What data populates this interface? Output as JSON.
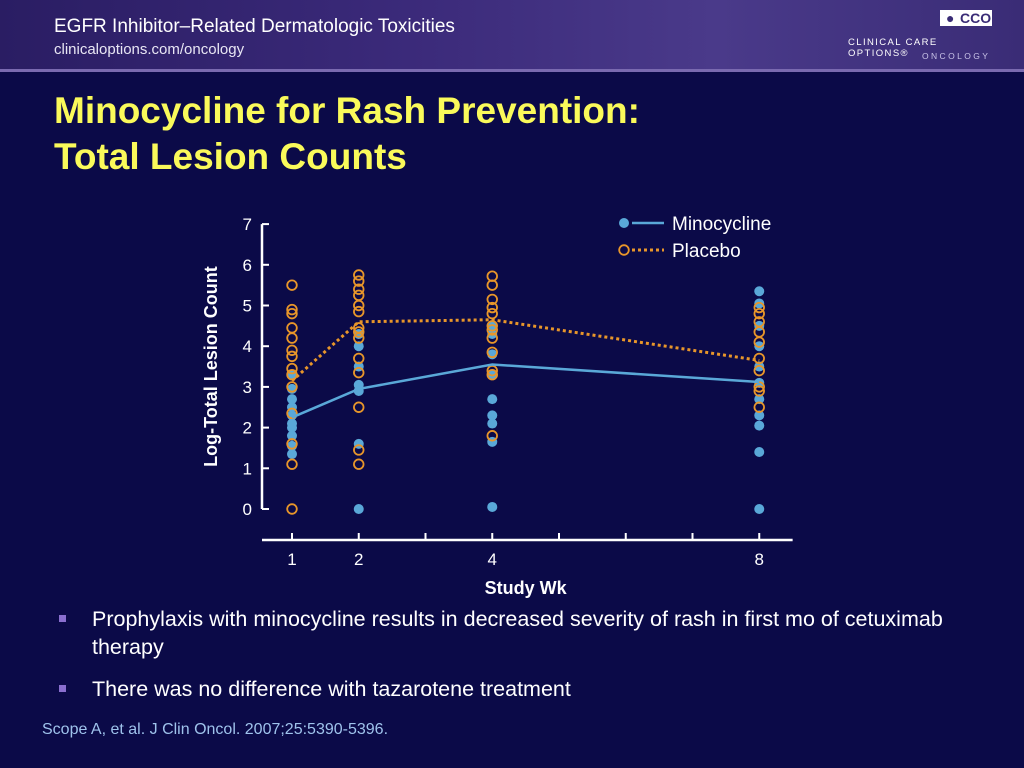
{
  "header": {
    "title": "EGFR Inhibitor–Related Dermatologic Toxicities",
    "url": "clinicaloptions.com/oncology",
    "logo_mark": "CCO",
    "logo_line1": "CLINICAL CARE OPTIONS®",
    "logo_line2": "ONCOLOGY"
  },
  "slide": {
    "title_line1": "Minocycline for Rash Prevention:",
    "title_line2": "Total Lesion Counts"
  },
  "bullets": [
    "Prophylaxis with minocycline results in decreased severity of rash in first mo of cetuximab therapy",
    "There was no difference with tazarotene treatment"
  ],
  "citation": "Scope A, et al. J Clin Oncol. 2007;25:5390-5396.",
  "chart_data": {
    "type": "scatter",
    "xlabel": "Study Wk",
    "ylabel": "Log-Total Lesion Count",
    "ylim": [
      0,
      7
    ],
    "xlim": [
      0.5,
      8.5
    ],
    "xticks": [
      1,
      2,
      4,
      8
    ],
    "xtick_marks": [
      1,
      2,
      3,
      4,
      5,
      6,
      7,
      8
    ],
    "yticks": [
      0,
      1,
      2,
      3,
      4,
      5,
      6,
      7
    ],
    "legend_position": "top-right",
    "series": [
      {
        "name": "Minocycline",
        "color": "#5aa8d8",
        "marker": "filled-circle",
        "line_style": "solid",
        "mean_line": [
          [
            1,
            2.25
          ],
          [
            2,
            2.95
          ],
          [
            4,
            3.55
          ],
          [
            8,
            3.12
          ]
        ],
        "points": [
          [
            1,
            1.35
          ],
          [
            1,
            1.55
          ],
          [
            1,
            1.8
          ],
          [
            1,
            2.0
          ],
          [
            1,
            2.1
          ],
          [
            1,
            2.3
          ],
          [
            1,
            2.5
          ],
          [
            1,
            2.7
          ],
          [
            1,
            2.95
          ],
          [
            1,
            3.3
          ],
          [
            2,
            0.0
          ],
          [
            2,
            1.6
          ],
          [
            2,
            2.9
          ],
          [
            2,
            3.05
          ],
          [
            2,
            3.5
          ],
          [
            2,
            4.0
          ],
          [
            2,
            4.3
          ],
          [
            4,
            0.05
          ],
          [
            4,
            1.65
          ],
          [
            4,
            2.1
          ],
          [
            4,
            2.3
          ],
          [
            4,
            2.7
          ],
          [
            4,
            3.3
          ],
          [
            4,
            3.8
          ],
          [
            4,
            4.3
          ],
          [
            4,
            4.5
          ],
          [
            8,
            0.0
          ],
          [
            8,
            1.4
          ],
          [
            8,
            2.05
          ],
          [
            8,
            2.3
          ],
          [
            8,
            2.7
          ],
          [
            8,
            3.1
          ],
          [
            8,
            3.5
          ],
          [
            8,
            4.0
          ],
          [
            8,
            4.5
          ],
          [
            8,
            5.05
          ],
          [
            8,
            5.35
          ]
        ]
      },
      {
        "name": "Placebo",
        "color": "#e8962a",
        "marker": "open-circle",
        "line_style": "dotted",
        "mean_line": [
          [
            1,
            3.15
          ],
          [
            2,
            4.6
          ],
          [
            4,
            4.65
          ],
          [
            8,
            3.65
          ]
        ],
        "points": [
          [
            1,
            0.0
          ],
          [
            1,
            1.1
          ],
          [
            1,
            1.6
          ],
          [
            1,
            2.35
          ],
          [
            1,
            3.0
          ],
          [
            1,
            3.3
          ],
          [
            1,
            3.45
          ],
          [
            1,
            3.75
          ],
          [
            1,
            3.9
          ],
          [
            1,
            4.2
          ],
          [
            1,
            4.45
          ],
          [
            1,
            4.8
          ],
          [
            1,
            4.9
          ],
          [
            1,
            5.5
          ],
          [
            2,
            1.1
          ],
          [
            2,
            1.45
          ],
          [
            2,
            2.5
          ],
          [
            2,
            3.35
          ],
          [
            2,
            3.7
          ],
          [
            2,
            4.2
          ],
          [
            2,
            4.35
          ],
          [
            2,
            4.45
          ],
          [
            2,
            4.85
          ],
          [
            2,
            5.0
          ],
          [
            2,
            5.25
          ],
          [
            2,
            5.4
          ],
          [
            2,
            5.6
          ],
          [
            2,
            5.75
          ],
          [
            4,
            1.8
          ],
          [
            4,
            3.3
          ],
          [
            4,
            3.4
          ],
          [
            4,
            3.85
          ],
          [
            4,
            4.2
          ],
          [
            4,
            4.4
          ],
          [
            4,
            4.5
          ],
          [
            4,
            4.8
          ],
          [
            4,
            4.95
          ],
          [
            4,
            5.15
          ],
          [
            4,
            5.5
          ],
          [
            4,
            5.72
          ],
          [
            8,
            2.5
          ],
          [
            8,
            2.9
          ],
          [
            8,
            3.0
          ],
          [
            8,
            3.4
          ],
          [
            8,
            3.7
          ],
          [
            8,
            4.1
          ],
          [
            8,
            4.35
          ],
          [
            8,
            4.6
          ],
          [
            8,
            4.8
          ],
          [
            8,
            4.95
          ]
        ]
      }
    ]
  }
}
